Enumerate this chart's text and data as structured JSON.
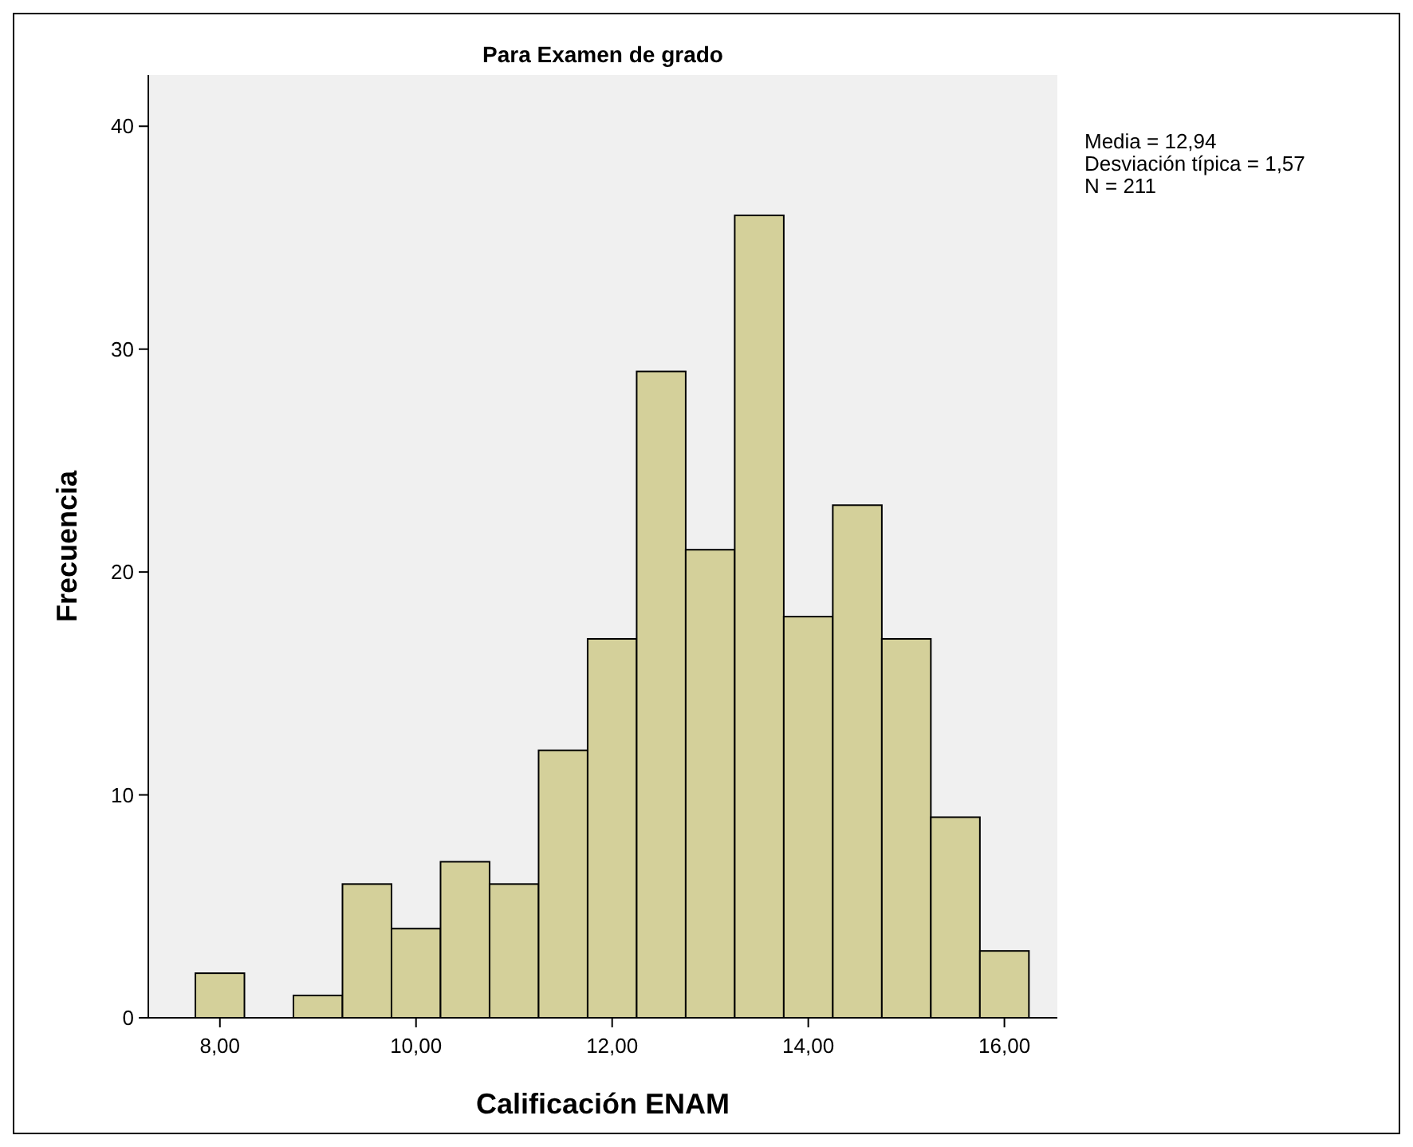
{
  "chart_data": {
    "type": "histogram",
    "title": "Para Examen de grado",
    "xlabel": "Calificación ENAM",
    "ylabel": "Frecuencia",
    "bins": [
      7.75,
      8.25,
      8.75,
      9.25,
      9.75,
      10.25,
      10.75,
      11.25,
      11.75,
      12.25,
      12.75,
      13.25,
      13.75,
      14.25,
      14.75,
      15.25,
      15.75,
      16.25
    ],
    "values": [
      2,
      0,
      1,
      6,
      4,
      7,
      6,
      12,
      17,
      29,
      21,
      36,
      18,
      23,
      17,
      9,
      3
    ],
    "color": "#d4d09a",
    "xlim": [
      7.27,
      16.54
    ],
    "ylim": [
      0,
      42.3
    ],
    "xticks": [
      {
        "value": 8,
        "label": "8,00"
      },
      {
        "value": 10,
        "label": "10,00"
      },
      {
        "value": 12,
        "label": "12,00"
      },
      {
        "value": 14,
        "label": "14,00"
      },
      {
        "value": 16,
        "label": "16,00"
      }
    ],
    "yticks": [
      0,
      10,
      20,
      30,
      40
    ],
    "grid": false,
    "annotations": [
      "Media = 12,94",
      "Desviación típica = 1,57",
      "N = 211"
    ]
  }
}
